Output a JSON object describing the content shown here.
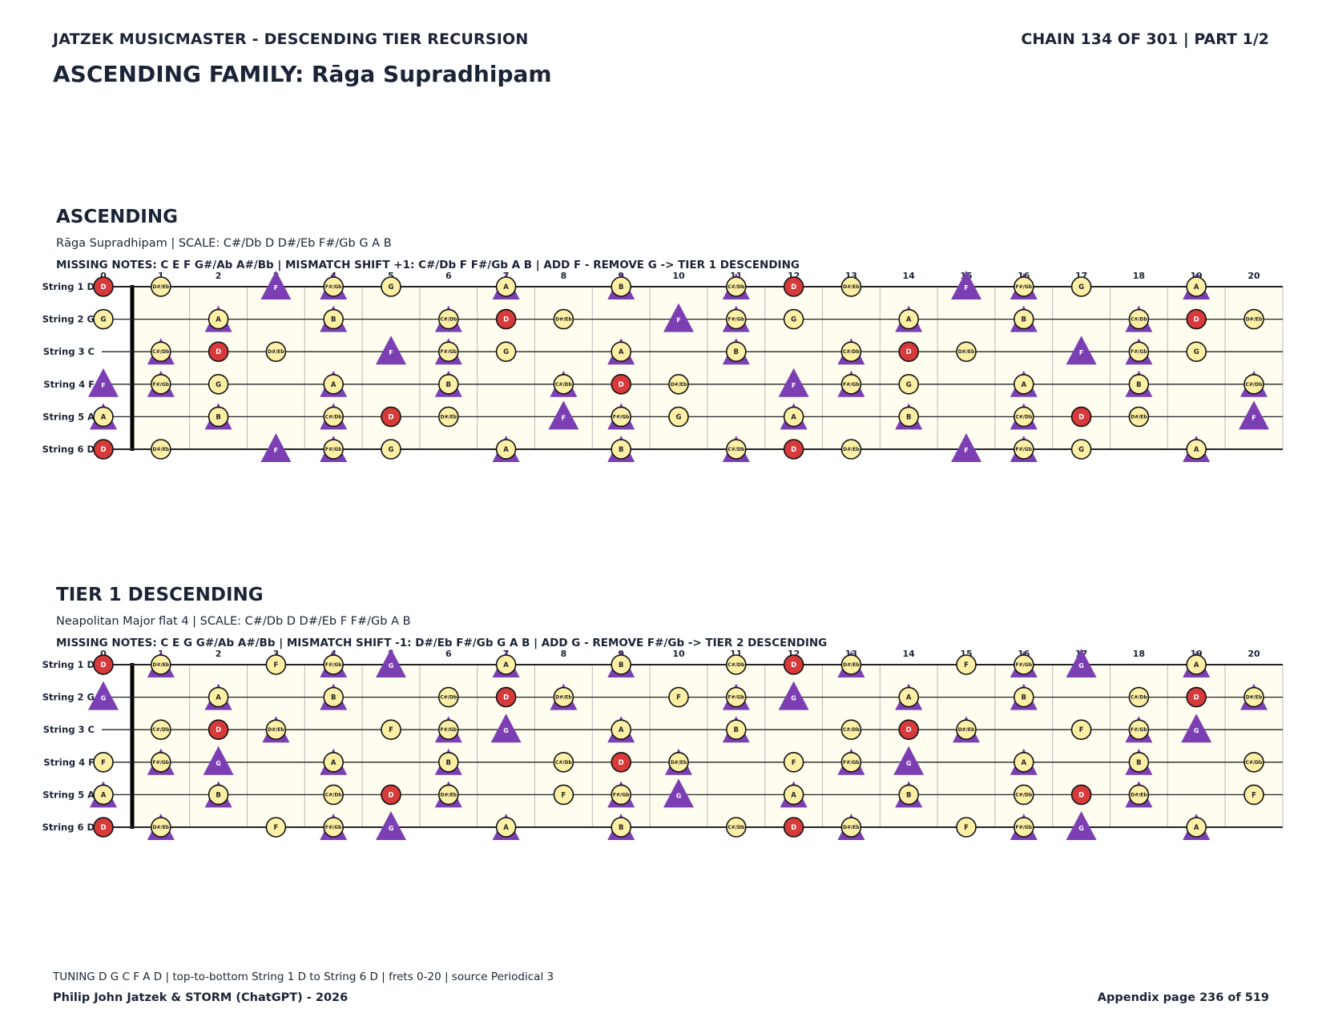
{
  "header": {
    "left": "JATZEK MUSICMASTER - DESCENDING TIER RECURSION",
    "right": "CHAIN 134 OF 301  |  PART 1/2"
  },
  "main_title": "ASCENDING FAMILY: Rāga Supradhipam",
  "fret_numbers": [
    "0",
    "1",
    "2",
    "3",
    "4",
    "5",
    "6",
    "7",
    "8",
    "9",
    "10",
    "11",
    "12",
    "13",
    "14",
    "15",
    "16",
    "17",
    "18",
    "19",
    "20"
  ],
  "string_labels": [
    "String 1 D",
    "String 2 G",
    "String 3 C",
    "String 4 F",
    "String 5 A",
    "String 6 D"
  ],
  "colors": {
    "root": "#d63a3a",
    "scale_note": "#fdf0a6",
    "added": "#7b3fb3",
    "board_bg": "#fffdf0",
    "ink": "#1b2436"
  },
  "sections": [
    {
      "title": "ASCENDING",
      "subtitle": "Rāga Supradhipam  |  SCALE: C#/Db D D#/Eb F#/Gb G A B",
      "info": "MISSING NOTES: C E F G#/Ab A#/Bb  |  MISMATCH SHIFT +1: C#/Db F F#/Gb A B  |  ADD F - REMOVE G -> TIER 1 DESCENDING",
      "root": "D",
      "scale": [
        "C#/Db",
        "D",
        "D#/Eb",
        "F#/Gb",
        "G",
        "A",
        "B"
      ],
      "triangles": [
        "C#/Db",
        "F",
        "F#/Gb",
        "A",
        "B"
      ],
      "big_triangle": "F"
    },
    {
      "title": "TIER 1 DESCENDING",
      "subtitle": "Neapolitan Major flat 4  |  SCALE: C#/Db D D#/Eb F F#/Gb A B",
      "info": "MISSING NOTES: C E G G#/Ab A#/Bb  |  MISMATCH SHIFT -1: D#/Eb F#/Gb G A B  |  ADD G - REMOVE F#/Gb -> TIER 2 DESCENDING",
      "root": "D",
      "scale": [
        "C#/Db",
        "D",
        "D#/Eb",
        "F",
        "F#/Gb",
        "A",
        "B"
      ],
      "triangles": [
        "D#/Eb",
        "F#/Gb",
        "G",
        "A",
        "B"
      ],
      "big_triangle": "G"
    }
  ],
  "footer": {
    "note": "TUNING D G C F A D | top-to-bottom String 1 D to String 6 D | frets 0-20 | source Periodical 3",
    "left": "Philip John Jatzek & STORM (ChatGPT) - 2026",
    "right": "Appendix page 236 of 519"
  }
}
